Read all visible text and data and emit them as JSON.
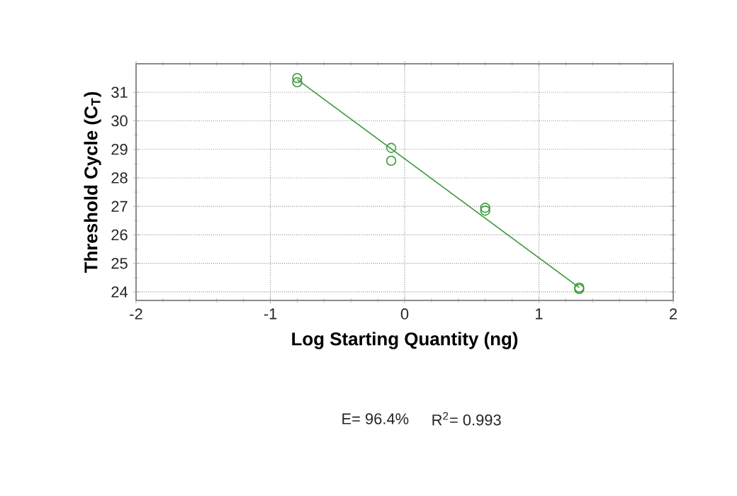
{
  "chart_data": {
    "type": "scatter",
    "xlabel": "Log Starting Quantity (ng)",
    "ylabel": "Threshold Cycle (C$_{T}$)",
    "xlim": [
      -2,
      2
    ],
    "xticks": [
      -2,
      -1,
      0,
      1,
      2
    ],
    "ylim": [
      23.7,
      32
    ],
    "yticks": [
      24,
      25,
      26,
      27,
      28,
      29,
      30,
      31
    ],
    "grid": true,
    "marker": "circle",
    "series": [
      {
        "color": "#3a9a3a",
        "x": [
          -0.8,
          -0.8,
          -0.1,
          -0.1,
          0.6,
          0.6,
          1.3,
          1.3
        ],
        "values": [
          31.5,
          31.35,
          29.05,
          28.6,
          26.95,
          26.85,
          24.15,
          24.1
        ]
      },
      {
        "type": "line",
        "marker": "none",
        "color": "#3a9a3a",
        "x": [
          -0.8,
          1.3
        ],
        "values": [
          31.45,
          24.15
        ]
      }
    ],
    "annotations": [
      "E= 96.4%",
      "R$^{2}$= 0.993"
    ]
  }
}
